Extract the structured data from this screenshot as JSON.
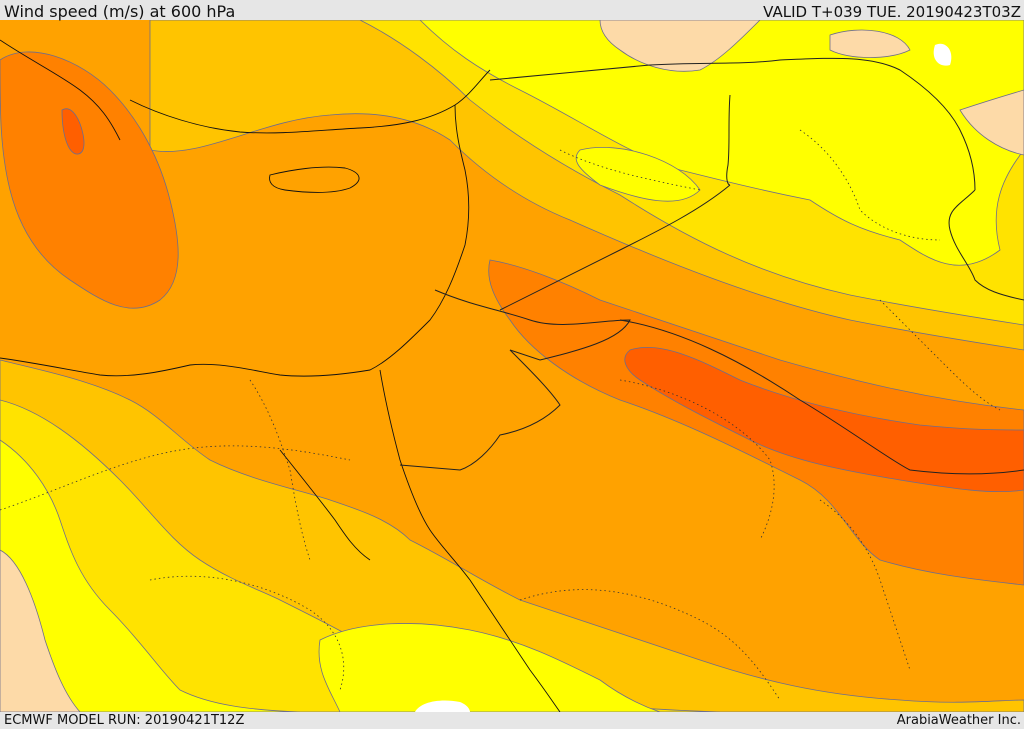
{
  "header": {
    "title": "Wind speed (m/s) at 600 hPa",
    "valid": "VALID T+039 TUE. 20190423T03Z"
  },
  "footer": {
    "model_run": "ECMWF MODEL RUN: 20190421T12Z",
    "credit": "ArabiaWeather Inc."
  },
  "map": {
    "field": "wind speed 600 hPa",
    "shading_colors": {
      "palest": "#fddaa8",
      "yellow": "#ffff00",
      "light_yellow_orange": "#ffe300",
      "amber": "#ffc400",
      "light_orange": "#ffa200",
      "orange": "#ff8100",
      "dark_orange": "#ff5f00",
      "land_mask": "#ffffff"
    },
    "contour_color": "#6e6e8c",
    "coastline_color": "#111111",
    "border_color": "#333333"
  }
}
